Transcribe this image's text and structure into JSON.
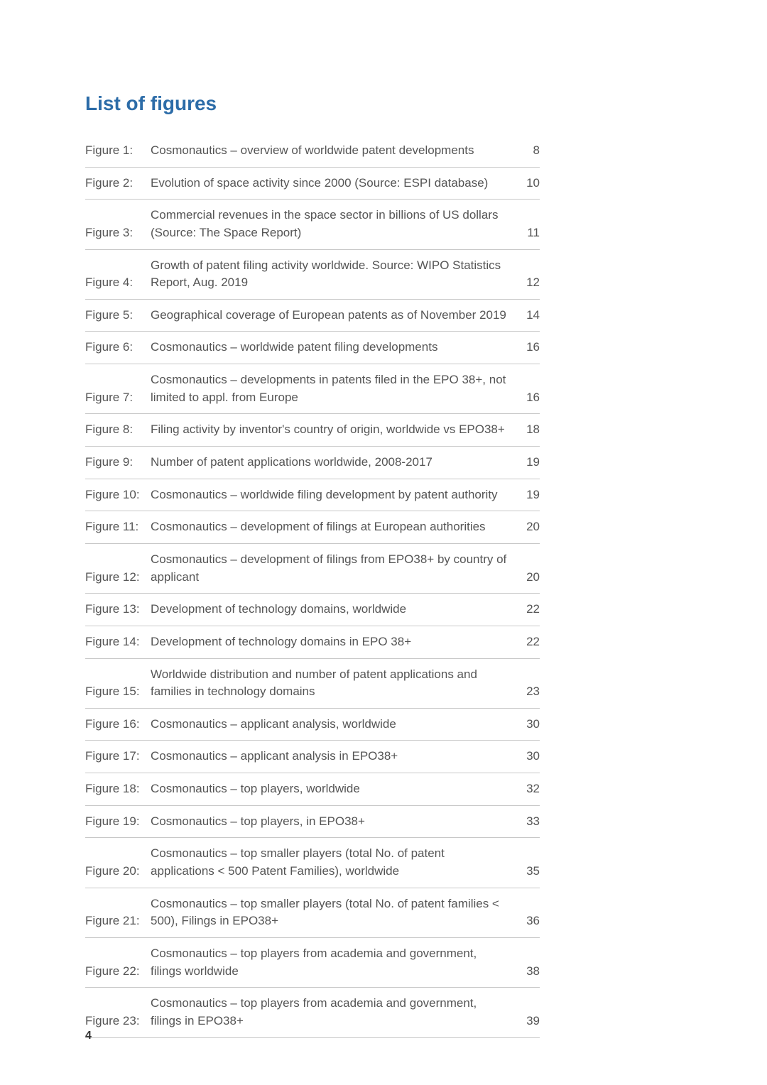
{
  "title": "List of figures",
  "pageNumber": "4",
  "colors": {
    "title": "#2c6ca8",
    "text": "#555555",
    "rule": "#c8c8c8",
    "background": "#ffffff"
  },
  "typography": {
    "title_fontsize": 28,
    "body_fontsize": 17,
    "pagenum_fontsize": 16
  },
  "figures": [
    {
      "label": "Figure 1:",
      "desc": "Cosmonautics – overview of worldwide patent developments",
      "page": "8"
    },
    {
      "label": "Figure 2:",
      "desc": "Evolution of space activity since 2000 (Source: ESPI database)",
      "page": "10"
    },
    {
      "label": "Figure 3:",
      "desc": "Commercial revenues in the space sector in billions of US dollars (Source: The Space Report)",
      "page": "11"
    },
    {
      "label": "Figure 4:",
      "desc": "Growth of patent filing activity worldwide. Source: WIPO Statistics Report, Aug. 2019",
      "page": "12"
    },
    {
      "label": "Figure 5:",
      "desc": "Geographical coverage of European patents as of November 2019",
      "page": "14"
    },
    {
      "label": "Figure 6:",
      "desc": "Cosmonautics – worldwide patent filing developments",
      "page": "16"
    },
    {
      "label": "Figure 7:",
      "desc": "Cosmonautics – developments in patents filed in the EPO 38+, not limited to appl. from Europe",
      "page": "16"
    },
    {
      "label": "Figure 8:",
      "desc": "Filing activity by inventor's country of origin, worldwide vs EPO38+",
      "page": "18"
    },
    {
      "label": "Figure 9:",
      "desc": "Number of patent applications worldwide, 2008-2017",
      "page": "19"
    },
    {
      "label": "Figure 10:",
      "desc": "Cosmonautics – worldwide filing development by patent authority",
      "page": "19"
    },
    {
      "label": "Figure 11:",
      "desc": "Cosmonautics – development of filings at European authorities",
      "page": "20"
    },
    {
      "label": "Figure 12:",
      "desc": "Cosmonautics – development of filings from EPO38+ by country of applicant",
      "page": "20"
    },
    {
      "label": "Figure 13:",
      "desc": "Development of technology domains, worldwide",
      "page": "22"
    },
    {
      "label": "Figure 14:",
      "desc": "Development of technology domains in EPO 38+",
      "page": "22"
    },
    {
      "label": "Figure 15:",
      "desc": "Worldwide distribution and number of patent applications and families in technology domains",
      "page": "23"
    },
    {
      "label": "Figure 16:",
      "desc": "Cosmonautics – applicant analysis, worldwide",
      "page": "30"
    },
    {
      "label": "Figure 17:",
      "desc": "Cosmonautics – applicant analysis in EPO38+",
      "page": "30"
    },
    {
      "label": "Figure 18:",
      "desc": "Cosmonautics – top  players, worldwide",
      "page": "32"
    },
    {
      "label": "Figure 19:",
      "desc": "Cosmonautics – top players, in EPO38+",
      "page": "33"
    },
    {
      "label": "Figure 20:",
      "desc": "Cosmonautics – top smaller players (total No. of patent applications < 500 Patent Families), worldwide",
      "page": "35"
    },
    {
      "label": "Figure 21:",
      "desc": "Cosmonautics – top smaller players (total No. of patent families < 500), Filings in EPO38+",
      "page": "36"
    },
    {
      "label": "Figure 22:",
      "desc": "Cosmonautics – top players from academia and government, filings worldwide",
      "page": "38"
    },
    {
      "label": "Figure 23:",
      "desc": "Cosmonautics – top players from academia and government, filings in EPO38+",
      "page": "39"
    }
  ]
}
